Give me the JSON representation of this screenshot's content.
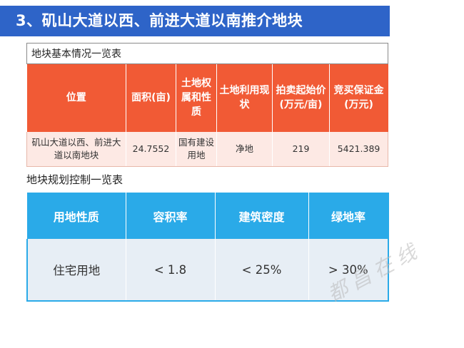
{
  "title": "3、矶山大道以西、前进大道以南推介地块",
  "info_table": {
    "caption": "地块基本情况一览表",
    "headers": [
      "位置",
      "面积(亩)",
      "土地权属和性质",
      "土地利用现状",
      "拍卖起始价(万元/亩)",
      "竞买保证金(万元)"
    ],
    "row": [
      "矶山大道以西、前进大道以南地块",
      "24.7552",
      "国有建设用地",
      "净地",
      "219",
      "5421.389"
    ]
  },
  "plan_table": {
    "caption": "地块规划控制一览表",
    "headers": [
      "用地性质",
      "容积率",
      "建筑密度",
      "绿地率"
    ],
    "row": [
      "住宅用地",
      "< 1.8",
      "< 25%",
      "> 30%"
    ]
  },
  "watermark": "都昌在线"
}
